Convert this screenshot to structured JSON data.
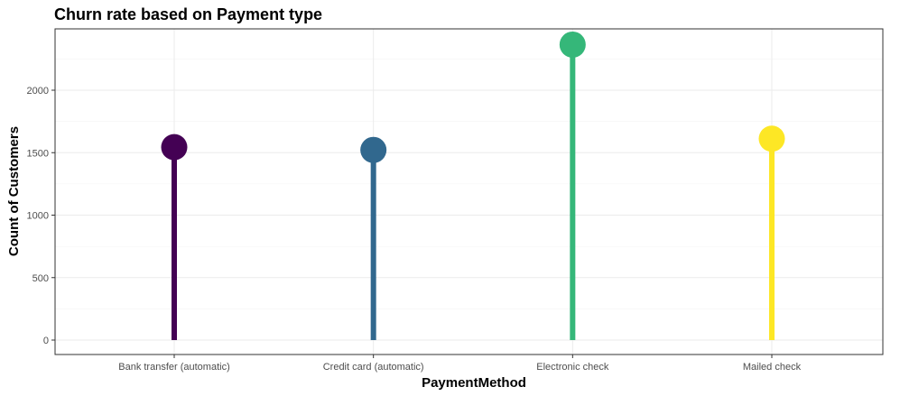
{
  "chart_data": {
    "type": "lollipop",
    "title": "Churn rate based on Payment type",
    "xlabel": "PaymentMethod",
    "ylabel": "Count of Customers",
    "categories": [
      "Bank transfer (automatic)",
      "Credit card (automatic)",
      "Electronic check",
      "Mailed check"
    ],
    "values": [
      1544,
      1522,
      2365,
      1612
    ],
    "colors": [
      "#440154",
      "#31688E",
      "#35B779",
      "#FDE725"
    ],
    "y_ticks": [
      0,
      500,
      1000,
      1500,
      2000
    ],
    "ylim": [
      0,
      2450
    ],
    "grid": true,
    "legend": "none"
  }
}
